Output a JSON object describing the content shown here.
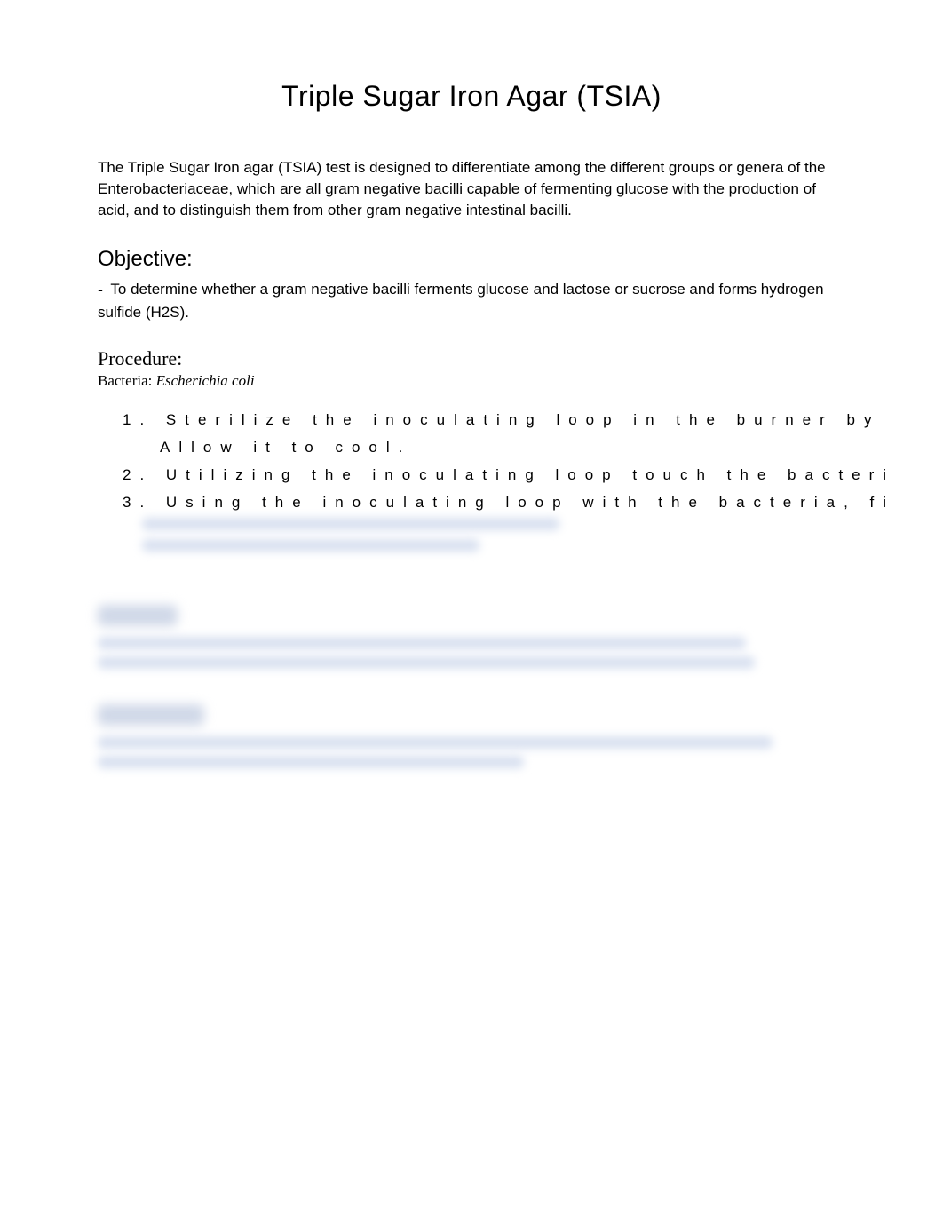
{
  "title": "Triple Sugar Iron Agar (TSIA)",
  "intro": "The Triple Sugar Iron agar (TSIA) test is designed to differentiate among the different groups or genera of the Enterobacteriaceae, which are all gram negative bacilli capable of fermenting glucose with the production of acid, and to distinguish them from other gram negative intestinal bacilli.",
  "objective": {
    "heading": "Objective:",
    "dash": "-",
    "text": "To determine whether a gram negative bacilli ferments glucose and lactose or sucrose and forms hydrogen sulfide (H2S)."
  },
  "procedure": {
    "heading": "Procedure:",
    "bacteria_label": "Bacteria: ",
    "bacteria_value": "Escherichia coli",
    "items": [
      "1. Sterilize the inoculating loop in the burner by",
      "Allow it to cool.",
      "2. Utilizing the inoculating loop touch the bacteri",
      "3. Using the inoculating loop with the bacteria, fi"
    ]
  },
  "blurred": {
    "line1_width": 470,
    "line2_width": 380,
    "results_heading_width": 90,
    "results_line1_width": 730,
    "results_line2_width": 740,
    "discussion_heading_width": 120,
    "discussion_line1_width": 760,
    "discussion_line2_width": 480
  },
  "colors": {
    "background": "#ffffff",
    "text": "#000000",
    "blur_fill": "#d8e0f0",
    "blur_heading": "#d0d8e8"
  },
  "typography": {
    "title_size": 32,
    "body_size": 17,
    "section_heading_size": 24,
    "procedure_heading_size": 22,
    "procedure_letter_spacing": 10
  }
}
